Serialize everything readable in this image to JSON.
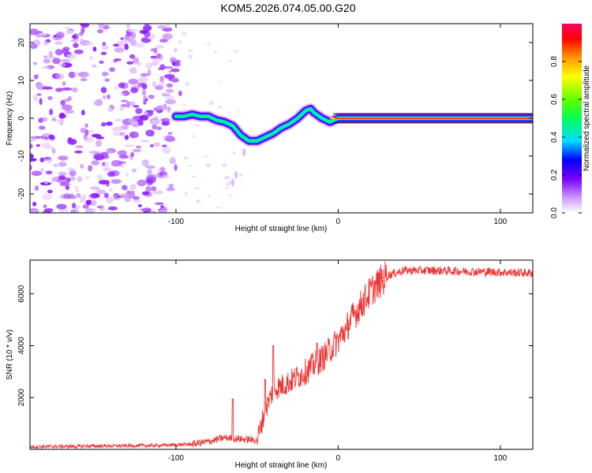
{
  "title": "KOM5.2026.074.05.00.G20",
  "colors": {
    "axes": "#000000",
    "snr_line": "#ee3333",
    "ridge_line": "#000000",
    "speckle": "#9b30ff"
  },
  "chart_data": [
    {
      "id": "spectrogram",
      "type": "heatmap",
      "title": "KOM5.2026.074.05.00.G20",
      "xlabel": "Height of straight line (km)",
      "ylabel": "Frequency (Hz)",
      "xlim": [
        -190,
        120
      ],
      "ylim": [
        -25,
        25
      ],
      "xticks": [
        -100,
        0,
        100
      ],
      "xtick_labels": [
        "-100",
        "0",
        "100"
      ],
      "yticks": [
        -20,
        -10,
        0,
        10,
        20
      ],
      "ytick_labels": [
        "-20",
        "-10",
        "0",
        "10",
        "20"
      ],
      "noise_region_x": [
        -190,
        -100
      ],
      "ridge": {
        "x": [
          -100,
          -95,
          -90,
          -85,
          -80,
          -75,
          -70,
          -65,
          -60,
          -55,
          -50,
          -45,
          -40,
          -35,
          -30,
          -25,
          -20,
          -17,
          -15,
          -10,
          -5,
          0,
          20,
          50,
          80,
          120
        ],
        "y": [
          0.5,
          0.5,
          1,
          0.5,
          0.5,
          -0.5,
          -1,
          -2,
          -4.5,
          -6,
          -6,
          -5,
          -4,
          -2.5,
          -1.5,
          0,
          2,
          2.5,
          1.5,
          0,
          -1,
          0,
          0,
          0,
          0,
          0
        ]
      },
      "colorbar": {
        "label": "Normalized spectral amplitude",
        "range": [
          0,
          1
        ],
        "ticks": [
          0.0,
          0.2,
          0.4,
          0.6,
          0.8
        ],
        "tick_labels": [
          "0.0",
          "0.2",
          "0.4",
          "0.6",
          "0.8"
        ]
      }
    },
    {
      "id": "snr",
      "type": "line",
      "xlabel": "Height of straight line (km)",
      "ylabel": "SNR (10 * v/v)",
      "xlim": [
        -190,
        120
      ],
      "ylim": [
        0,
        7300
      ],
      "xticks": [
        -100,
        0,
        100
      ],
      "xtick_labels": [
        "-100",
        "0",
        "100"
      ],
      "yticks": [
        2000,
        4000,
        6000
      ],
      "ytick_labels": [
        "2000",
        "4000",
        "6000"
      ],
      "trend": {
        "x": [
          -190,
          -110,
          -90,
          -80,
          -70,
          -60,
          -50,
          -45,
          -40,
          -30,
          -20,
          -10,
          0,
          10,
          20,
          30,
          40,
          60,
          90,
          120
        ],
        "y": [
          100,
          150,
          200,
          300,
          450,
          400,
          350,
          1500,
          2300,
          2600,
          3000,
          3500,
          4200,
          5200,
          6100,
          6700,
          6900,
          6900,
          6850,
          6800
        ]
      },
      "spikes": [
        {
          "x": -65,
          "y": 1950
        },
        {
          "x": -45,
          "y": 2700
        },
        {
          "x": -40,
          "y": 4000
        },
        {
          "x": -13,
          "y": 4100
        },
        {
          "x": 5,
          "y": 4600
        }
      ],
      "series": [
        {
          "name": "SNR"
        }
      ]
    }
  ]
}
